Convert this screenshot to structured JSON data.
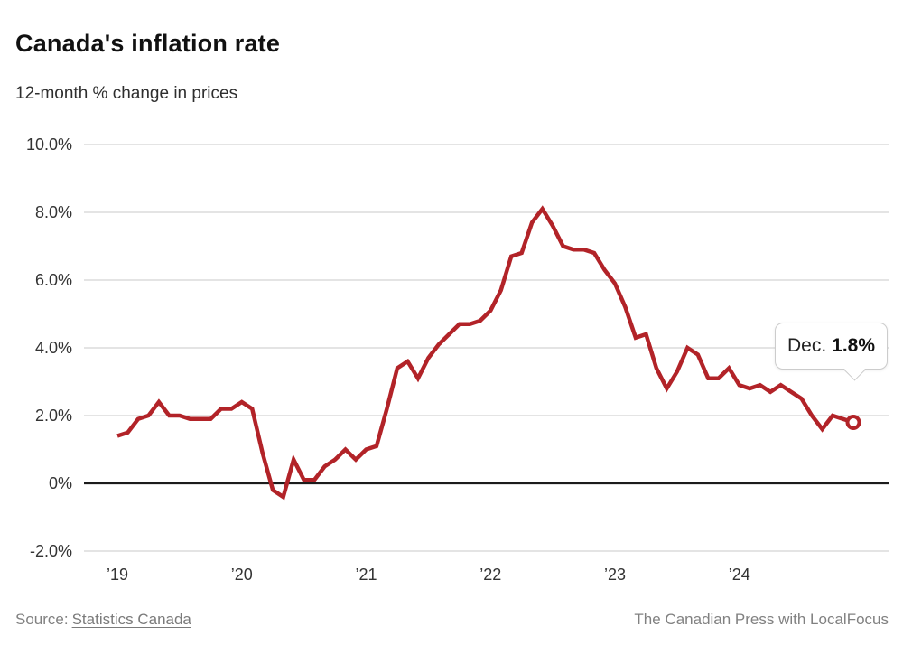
{
  "chart_data": {
    "type": "line",
    "title": "Canada's inflation rate",
    "subtitle": "12-month % change in prices",
    "series_name": "Canada CPI, 12-month % change",
    "x_unit": "month",
    "x_range": [
      "Jan 2019",
      "Dec 2024"
    ],
    "series": [
      {
        "year": "2019",
        "values": [
          1.4,
          1.5,
          1.9,
          2.0,
          2.4,
          2.0,
          2.0,
          1.9,
          1.9,
          1.9,
          2.2,
          2.2
        ]
      },
      {
        "year": "2020",
        "values": [
          2.4,
          2.2,
          0.9,
          -0.2,
          -0.4,
          0.7,
          0.1,
          0.1,
          0.5,
          0.7,
          1.0,
          0.7
        ]
      },
      {
        "year": "2021",
        "values": [
          1.0,
          1.1,
          2.2,
          3.4,
          3.6,
          3.1,
          3.7,
          4.1,
          4.4,
          4.7,
          4.7,
          4.8
        ]
      },
      {
        "year": "2022",
        "values": [
          5.1,
          5.7,
          6.7,
          6.8,
          7.7,
          8.1,
          7.6,
          7.0,
          6.9,
          6.9,
          6.8,
          6.3
        ]
      },
      {
        "year": "2023",
        "values": [
          5.9,
          5.2,
          4.3,
          4.4,
          3.4,
          2.8,
          3.3,
          4.0,
          3.8,
          3.1,
          3.1,
          3.4
        ]
      },
      {
        "year": "2024",
        "values": [
          2.9,
          2.8,
          2.9,
          2.7,
          2.9,
          2.7,
          2.5,
          2.0,
          1.6,
          2.0,
          1.9,
          1.8
        ]
      }
    ],
    "x_ticks": [
      {
        "index": 0,
        "label": "’19"
      },
      {
        "index": 12,
        "label": "’20"
      },
      {
        "index": 24,
        "label": "’21"
      },
      {
        "index": 36,
        "label": "’22"
      },
      {
        "index": 48,
        "label": "’23"
      },
      {
        "index": 60,
        "label": "’24"
      }
    ],
    "y_ticks": [
      {
        "value": 10,
        "label": "10.0%"
      },
      {
        "value": 8,
        "label": "8.0%"
      },
      {
        "value": 6,
        "label": "6.0%"
      },
      {
        "value": 4,
        "label": "4.0%"
      },
      {
        "value": 2,
        "label": "2.0%"
      },
      {
        "value": 0,
        "label": "0%"
      },
      {
        "value": -2,
        "label": "-2.0%"
      }
    ],
    "ylim": [
      -2.4,
      10.6
    ],
    "grid": "horizontal",
    "legend": "none",
    "endpoint": {
      "label": "Dec.",
      "value": "1.8%",
      "marker": "open-circle"
    },
    "colors": {
      "line": "#b22328",
      "grid": "#dcdcdc",
      "zero_line": "#1c1c1c",
      "axis_text": "#333333"
    }
  },
  "footer": {
    "source_prefix": "Source:",
    "source_link": "Statistics Canada",
    "credit": "The Canadian Press with LocalFocus"
  }
}
